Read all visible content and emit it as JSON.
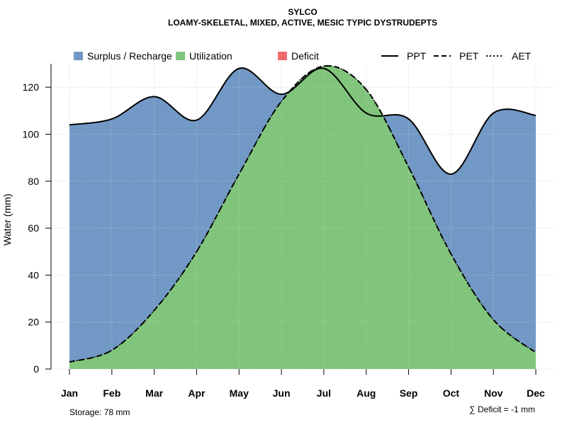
{
  "chart_data": {
    "type": "area",
    "title": "SYLCO",
    "subtitle": "LOAMY-SKELETAL, MIXED, ACTIVE, MESIC TYPIC DYSTRUDEPTS",
    "xlabel": "",
    "ylabel": "Water (mm)",
    "ylim": [
      0,
      130
    ],
    "yticks": [
      0,
      20,
      40,
      60,
      80,
      100,
      120
    ],
    "categories": [
      "Jan",
      "Feb",
      "Mar",
      "Apr",
      "May",
      "Jun",
      "Jul",
      "Aug",
      "Sep",
      "Oct",
      "Nov",
      "Dec"
    ],
    "series": [
      {
        "name": "PPT",
        "style": "solid",
        "values": [
          104,
          106.5,
          116,
          106,
          128,
          117,
          128,
          109,
          106.5,
          83,
          109,
          108
        ]
      },
      {
        "name": "PET",
        "style": "dashed",
        "values": [
          3,
          8,
          25,
          50,
          83,
          114,
          129,
          119,
          86,
          49,
          21,
          7
        ]
      },
      {
        "name": "AET",
        "style": "dotted",
        "values": [
          3,
          8,
          25,
          50,
          83,
          114,
          129,
          119,
          86,
          49,
          21,
          7
        ]
      }
    ],
    "legend": [
      {
        "label": "Surplus / Recharge",
        "kind": "fill",
        "color": "#7299c6"
      },
      {
        "label": "Utilization",
        "kind": "fill",
        "color": "#80c57b"
      },
      {
        "label": "Deficit",
        "kind": "fill",
        "color": "#ef6b6b"
      },
      {
        "label": "PPT",
        "kind": "line",
        "dash": "solid"
      },
      {
        "label": "PET",
        "kind": "line",
        "dash": "dashed"
      },
      {
        "label": "AET",
        "kind": "line",
        "dash": "dotted"
      }
    ],
    "grid": true,
    "colors": {
      "surplus": "#7299c6",
      "utilization": "#80c57b",
      "deficit": "#ef6b6b"
    },
    "footnote_left": "Storage: 78 mm",
    "footnote_right": "∑ Deficit = -1 mm"
  }
}
